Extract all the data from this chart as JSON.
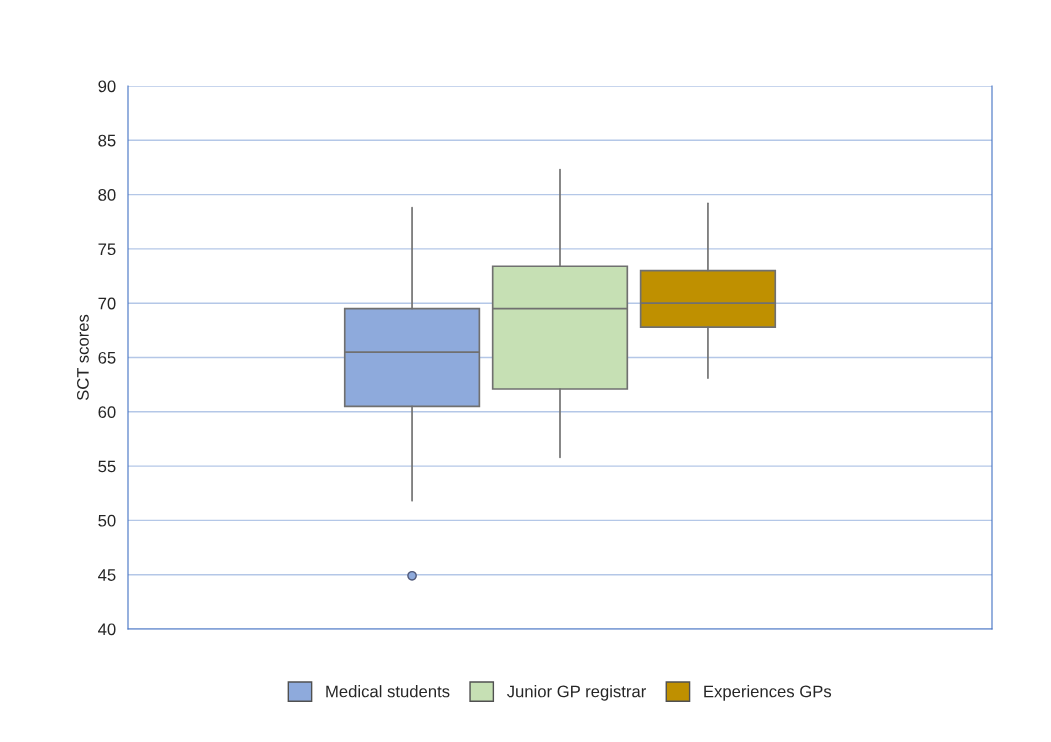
{
  "chart_data": {
    "type": "box",
    "ylabel": "SCT scores",
    "categories": [
      null
    ],
    "series": [
      {
        "name": "Medical students",
        "color": "#8eaadc",
        "boxes": [
          {
            "low": 51.8,
            "q1": 60.5,
            "median": 65.5,
            "q3": 69.5,
            "high": 78.8,
            "outliers": [
              44.9
            ]
          }
        ]
      },
      {
        "name": "Junior GP registrar",
        "color": "#c6e0b4",
        "boxes": [
          {
            "low": 55.8,
            "q1": 62.1,
            "median": 69.5,
            "q3": 73.4,
            "high": 82.3
          }
        ]
      },
      {
        "name": "Experiences GPs",
        "color": "#bf9000",
        "boxes": [
          {
            "low": 63.1,
            "q1": 67.8,
            "median": 70.0,
            "q3": 73.0,
            "high": 79.2
          }
        ]
      }
    ],
    "ylim": [
      40,
      90
    ],
    "yticks": [
      40,
      45,
      50,
      55,
      60,
      65,
      70,
      75,
      80,
      85,
      90
    ],
    "grid": "y",
    "legend": "bottom"
  }
}
